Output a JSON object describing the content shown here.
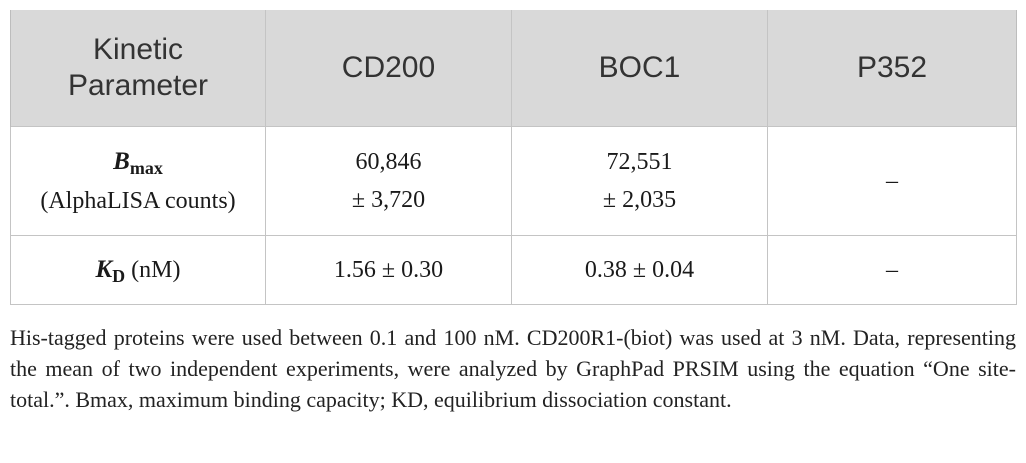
{
  "table": {
    "headers": [
      {
        "line1": "Kinetic",
        "line2": "Parameter"
      },
      {
        "line1": "CD200"
      },
      {
        "line1": "BOC1"
      },
      {
        "line1": "P352"
      }
    ],
    "rows": [
      {
        "param_symbol": "B",
        "param_sub": "max",
        "param_unit": "(AlphaLISA counts)",
        "cd200": {
          "value": "60,846",
          "error": "± 3,720"
        },
        "boc1": {
          "value": "72,551",
          "error": "± 2,035"
        },
        "p352": "–"
      },
      {
        "param_symbol": "K",
        "param_sub": "D",
        "param_unit": "(nM)",
        "cd200": "1.56 ± 0.30",
        "boc1": "0.38 ± 0.04",
        "p352": "–"
      }
    ]
  },
  "footnote": "His-tagged proteins were used between 0.1 and 100 nM. CD200R1-(biot) was used at 3 nM. Data, representing the mean of two independent experiments, were analyzed by GraphPad PRSIM using the equation “One site-total.”. Bmax, maximum binding capacity; KD, equilibrium dissociation constant."
}
